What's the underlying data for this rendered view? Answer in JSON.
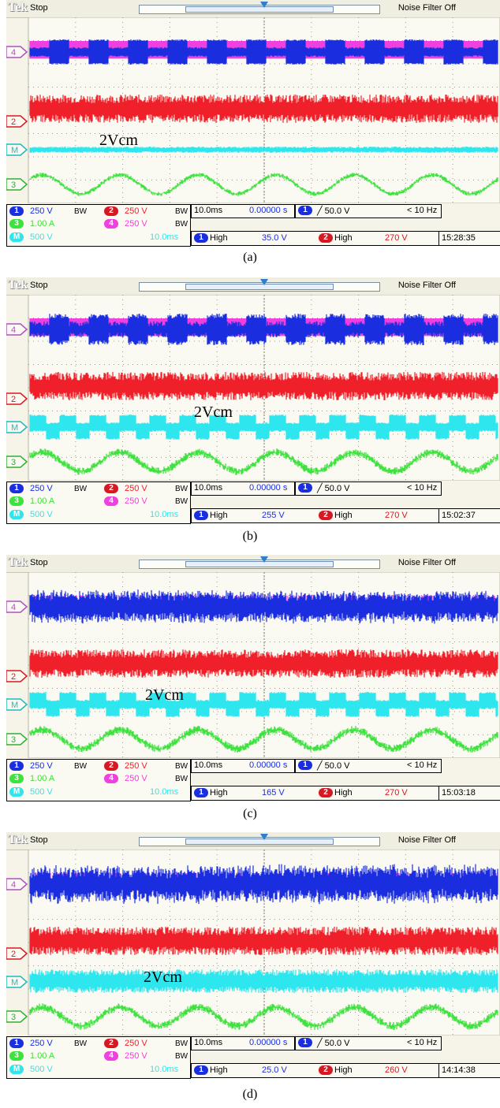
{
  "common": {
    "brand": "Tek",
    "status": "Stop",
    "noise_filter": "Noise Filter Off",
    "annotation": "2Vcm",
    "bw_label": "BW",
    "ch_labels": {
      "ch1": "1",
      "ch2": "2",
      "ch3": "3",
      "ch4": "4",
      "math": "M"
    },
    "ch1_scale": "250 V",
    "ch2_scale": "250 V",
    "ch3_scale": "1.00 A",
    "ch4_scale": "250 V",
    "math_scale": "500 V",
    "math_time": "10.0ms",
    "timebase": "10.0ms",
    "position": "0.00000 s",
    "trigger": "╱ 50.0 V",
    "freq": "< 10 Hz",
    "meas_label": "High",
    "colors": {
      "ch1": "#1a2ee0",
      "ch2": "#f0202a",
      "ch3": "#3ee23e",
      "ch4": "#f040e0",
      "math": "#2ee6ee",
      "chip1": "#1a2ee0",
      "chip2": "#d81820",
      "chip3": "#3ee23e",
      "chip4": "#f040e0",
      "chipm": "#2ee6ee"
    }
  },
  "panels": [
    {
      "caption": "(a)",
      "meas1": "35.0 V",
      "meas2": "270 V",
      "time": "15:28:35"
    },
    {
      "caption": "(b)",
      "meas1": "255 V",
      "meas2": "270 V",
      "time": "15:02:37"
    },
    {
      "caption": "(c)",
      "meas1": "165 V",
      "meas2": "270 V",
      "time": "15:03:18"
    },
    {
      "caption": "(d)",
      "meas1": "25.0 V",
      "meas2": "260 V",
      "time": "14:14:38"
    }
  ],
  "chart_data": [
    {
      "type": "line",
      "title": "",
      "panel": "(a)",
      "series": [
        {
          "name": "",
          "channel": "4",
          "pattern": "square-alternating",
          "noise": "low"
        },
        {
          "name": "",
          "channel": "2",
          "pattern": "dense-pwm",
          "noise": "high"
        },
        {
          "name": "",
          "channel": "M",
          "pattern": "near-flat",
          "amplitude": "small"
        },
        {
          "name": "",
          "channel": "3",
          "pattern": "sine",
          "cycles": 6
        }
      ]
    },
    {
      "type": "line",
      "title": "",
      "panel": "(b)",
      "series": [
        {
          "name": "",
          "channel": "4",
          "pattern": "square-alternating",
          "noise": "medium"
        },
        {
          "name": "",
          "channel": "2",
          "pattern": "dense-pwm",
          "noise": "high"
        },
        {
          "name": "",
          "channel": "M",
          "pattern": "square",
          "amplitude": "large"
        },
        {
          "name": "",
          "channel": "3",
          "pattern": "sine",
          "cycles": 6
        }
      ]
    },
    {
      "type": "line",
      "title": "",
      "panel": "(c)",
      "series": [
        {
          "name": "",
          "channel": "4",
          "pattern": "dense-pwm",
          "noise": "high"
        },
        {
          "name": "",
          "channel": "2",
          "pattern": "dense-pwm",
          "noise": "high"
        },
        {
          "name": "",
          "channel": "M",
          "pattern": "square",
          "amplitude": "large"
        },
        {
          "name": "",
          "channel": "3",
          "pattern": "sine",
          "cycles": 6
        }
      ]
    },
    {
      "type": "line",
      "title": "",
      "panel": "(d)",
      "series": [
        {
          "name": "",
          "channel": "4",
          "pattern": "dense-pwm",
          "noise": "very-high"
        },
        {
          "name": "",
          "channel": "2",
          "pattern": "dense-pwm",
          "noise": "high"
        },
        {
          "name": "",
          "channel": "M",
          "pattern": "noisy",
          "amplitude": "medium"
        },
        {
          "name": "",
          "channel": "3",
          "pattern": "sine",
          "cycles": 6
        }
      ]
    }
  ]
}
